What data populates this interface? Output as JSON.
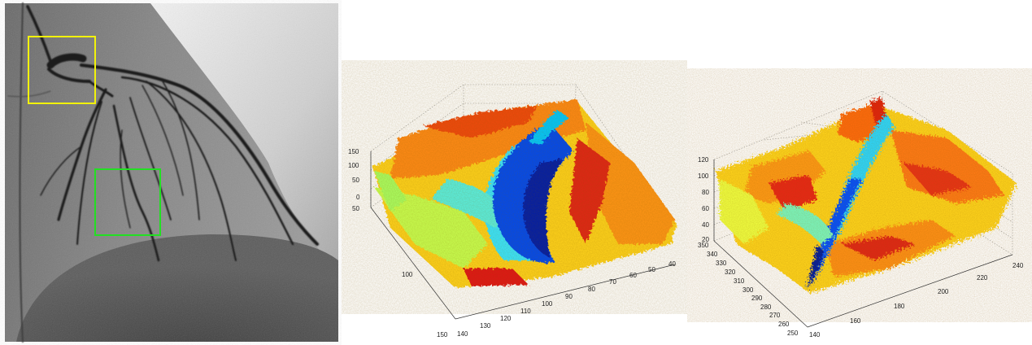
{
  "panels": {
    "angiogram": {
      "roi_colors": {
        "yellow": "#f2f20a",
        "green": "#22e022"
      }
    },
    "surface_1": {
      "z_ticks": [
        "150",
        "100",
        "50",
        "0"
      ],
      "y_ticks": [
        "50",
        "100",
        "150"
      ],
      "x_ticks": [
        "140",
        "130",
        "120",
        "110",
        "100",
        "90",
        "80",
        "70",
        "60",
        "50",
        "40"
      ]
    },
    "surface_2": {
      "z_ticks": [
        "120",
        "100",
        "80",
        "60",
        "40",
        "20"
      ],
      "y_ticks": [
        "350",
        "340",
        "330",
        "320",
        "310",
        "300",
        "290",
        "280",
        "270",
        "260",
        "250"
      ],
      "x_ticks": [
        "140",
        "160",
        "180",
        "200",
        "220",
        "240"
      ]
    }
  },
  "colormap": [
    "#00008f",
    "#0050ff",
    "#00dfff",
    "#a0ff60",
    "#ffff00",
    "#ff8000",
    "#d01010"
  ]
}
